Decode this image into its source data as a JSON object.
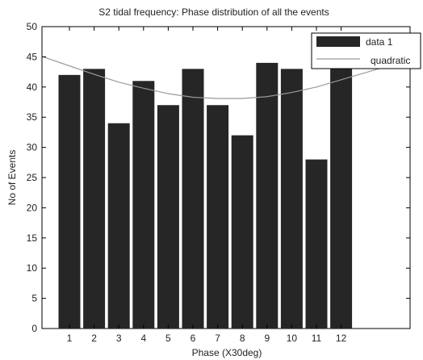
{
  "chart_data": {
    "type": "bar",
    "title": "S2 tidal frequency: Phase distribution of all the events",
    "xlabel": "Phase (X30deg)",
    "ylabel": "No of Events",
    "categories": [
      "1",
      "2",
      "3",
      "4",
      "5",
      "6",
      "7",
      "8",
      "9",
      "10",
      "11",
      "12"
    ],
    "series": [
      {
        "name": "data 1",
        "type": "bar",
        "color": "#262626",
        "values": [
          42,
          43,
          34,
          41,
          37,
          43,
          37,
          32,
          44,
          43,
          28,
          43
        ]
      },
      {
        "name": "quadratic",
        "type": "line",
        "color": "#9a9a9a",
        "values": [
          43.5,
          42.1,
          40.8,
          39.8,
          38.9,
          38.3,
          38.1,
          38.1,
          38.4,
          39.1,
          40.0,
          41.2
        ]
      }
    ],
    "ylim": [
      0,
      50
    ],
    "yticks": [
      0,
      5,
      10,
      15,
      20,
      25,
      30,
      35,
      40,
      45,
      50
    ],
    "grid": false,
    "legend_position": "top-right"
  }
}
